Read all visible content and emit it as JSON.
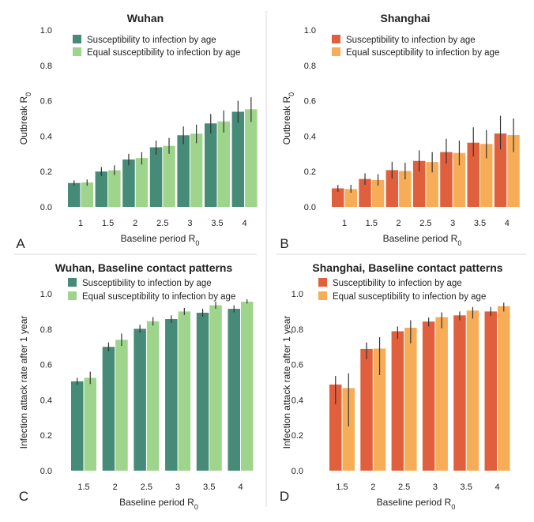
{
  "panel_letters": [
    "A",
    "B",
    "C",
    "D"
  ],
  "colors": {
    "wuhan_dark": "#468a78",
    "wuhan_light": "#9fd48c",
    "shanghai_dark": "#e0603e",
    "shanghai_light": "#f7ad57",
    "error_bar": "#333333",
    "divider": "#d9d9d9"
  },
  "chart_data": [
    {
      "type": "bar",
      "panel": "A",
      "title": "Wuhan",
      "xlabel": "Baseline period R",
      "xlabel_sub": "0",
      "ylabel": "Outbreak R",
      "ylabel_sub": "0",
      "ylim": [
        0,
        1.0
      ],
      "yticks": [
        "0.0",
        "0.2",
        "0.4",
        "0.6",
        "0.8",
        "1.0"
      ],
      "categories": [
        "1",
        "1.5",
        "2",
        "2.5",
        "3",
        "3.5",
        "4"
      ],
      "legend_position": "top-left",
      "series": [
        {
          "name": "Susceptibility to infection by age",
          "color": "#468a78",
          "values": [
            0.135,
            0.2,
            0.268,
            0.337,
            0.405,
            0.472,
            0.538
          ],
          "err_low": [
            0.12,
            0.175,
            0.235,
            0.295,
            0.355,
            0.415,
            0.475
          ],
          "err_high": [
            0.15,
            0.225,
            0.3,
            0.375,
            0.455,
            0.525,
            0.6
          ]
        },
        {
          "name": "Equal susceptibility to infection by age",
          "color": "#9fd48c",
          "values": [
            0.138,
            0.207,
            0.276,
            0.345,
            0.414,
            0.483,
            0.552
          ],
          "err_low": [
            0.12,
            0.18,
            0.24,
            0.3,
            0.36,
            0.42,
            0.48
          ],
          "err_high": [
            0.155,
            0.235,
            0.31,
            0.39,
            0.465,
            0.545,
            0.62
          ]
        }
      ]
    },
    {
      "type": "bar",
      "panel": "B",
      "title": "Shanghai",
      "xlabel": "Baseline period R",
      "xlabel_sub": "0",
      "ylabel": "Outbreak R",
      "ylabel_sub": "0",
      "ylim": [
        0,
        1.0
      ],
      "yticks": [
        "0.0",
        "0.2",
        "0.4",
        "0.6",
        "0.8",
        "1.0"
      ],
      "categories": [
        "1",
        "1.5",
        "2",
        "2.5",
        "3",
        "3.5",
        "4"
      ],
      "legend_position": "top-left",
      "series": [
        {
          "name": "Susceptibility to infection by age",
          "color": "#e0603e",
          "values": [
            0.105,
            0.158,
            0.208,
            0.26,
            0.31,
            0.363,
            0.415
          ],
          "err_low": [
            0.085,
            0.125,
            0.16,
            0.2,
            0.245,
            0.285,
            0.325
          ],
          "err_high": [
            0.125,
            0.19,
            0.255,
            0.32,
            0.385,
            0.45,
            0.515
          ]
        },
        {
          "name": "Equal susceptibility to infection by age",
          "color": "#f7ad57",
          "values": [
            0.101,
            0.152,
            0.203,
            0.254,
            0.305,
            0.356,
            0.406
          ],
          "err_low": [
            0.08,
            0.12,
            0.155,
            0.195,
            0.235,
            0.275,
            0.31
          ],
          "err_high": [
            0.125,
            0.185,
            0.25,
            0.31,
            0.375,
            0.435,
            0.5
          ]
        }
      ]
    },
    {
      "type": "bar",
      "panel": "C",
      "title": "Wuhan, Baseline contact patterns",
      "xlabel": "Baseline period R",
      "xlabel_sub": "0",
      "ylabel": "Infection attack rate after 1 year",
      "ylim": [
        0,
        1.0
      ],
      "yticks": [
        "0.0",
        "0.2",
        "0.4",
        "0.6",
        "0.8",
        "1.0"
      ],
      "categories": [
        "1.5",
        "2",
        "2.5",
        "3",
        "3.5",
        "4"
      ],
      "legend_position": "top-left",
      "series": [
        {
          "name": "Susceptibility to infection by age",
          "color": "#468a78",
          "values": [
            0.505,
            0.7,
            0.802,
            0.857,
            0.893,
            0.915
          ],
          "err_low": [
            0.485,
            0.675,
            0.78,
            0.835,
            0.87,
            0.895
          ],
          "err_high": [
            0.525,
            0.725,
            0.825,
            0.878,
            0.915,
            0.935
          ]
        },
        {
          "name": "Equal susceptibility to infection by age",
          "color": "#9fd48c",
          "values": [
            0.525,
            0.74,
            0.845,
            0.9,
            0.935,
            0.955
          ],
          "err_low": [
            0.49,
            0.705,
            0.82,
            0.88,
            0.915,
            0.945
          ],
          "err_high": [
            0.56,
            0.775,
            0.868,
            0.92,
            0.955,
            0.968
          ]
        }
      ]
    },
    {
      "type": "bar",
      "panel": "D",
      "title": "Shanghai, Baseline contact patterns",
      "xlabel": "Baseline period R",
      "xlabel_sub": "0",
      "ylabel": "Infection attack rate after 1 year",
      "ylim": [
        0,
        1.0
      ],
      "yticks": [
        "0.0",
        "0.2",
        "0.4",
        "0.6",
        "0.8",
        "1.0"
      ],
      "categories": [
        "1.5",
        "2",
        "2.5",
        "3",
        "3.5",
        "4"
      ],
      "legend_position": "top-left",
      "series": [
        {
          "name": "Susceptibility to infection by age",
          "color": "#e0603e",
          "values": [
            0.487,
            0.688,
            0.788,
            0.843,
            0.878,
            0.9
          ],
          "err_low": [
            0.375,
            0.63,
            0.745,
            0.815,
            0.85,
            0.875
          ],
          "err_high": [
            0.535,
            0.725,
            0.815,
            0.865,
            0.9,
            0.925
          ]
        },
        {
          "name": "Equal susceptibility to infection by age",
          "color": "#f7ad57",
          "values": [
            0.467,
            0.69,
            0.808,
            0.868,
            0.905,
            0.93
          ],
          "err_low": [
            0.25,
            0.54,
            0.72,
            0.805,
            0.86,
            0.9
          ],
          "err_high": [
            0.55,
            0.755,
            0.85,
            0.895,
            0.925,
            0.95
          ]
        }
      ]
    }
  ]
}
